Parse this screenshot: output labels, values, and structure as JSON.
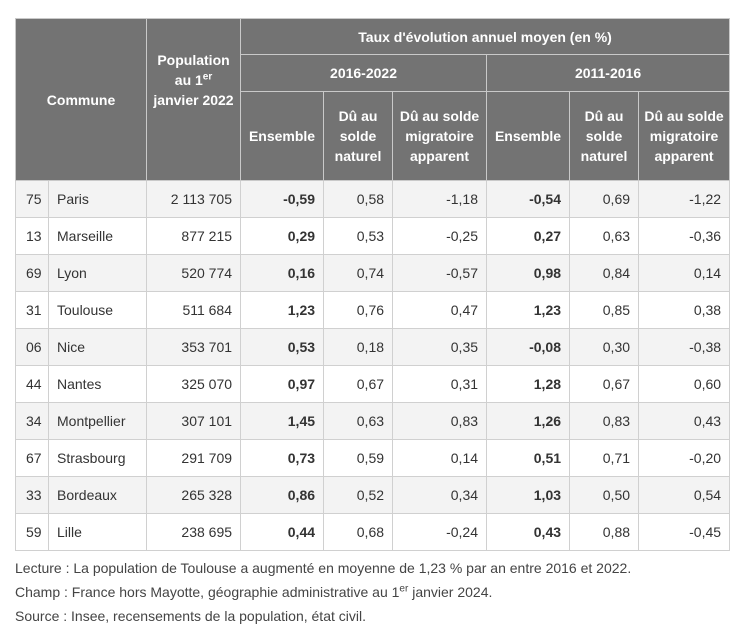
{
  "table": {
    "header": {
      "commune": "Commune",
      "population": "Population au 1",
      "population_sup": "er",
      "population_rest": " janvier 2022",
      "taux": "Taux d'évolution annuel moyen (en %)",
      "period1": "2016-2022",
      "period2": "2011-2016",
      "ensemble": "Ensemble",
      "naturel": "Dû au solde naturel",
      "migratoire": "Dû au solde migratoire apparent"
    },
    "rows": [
      {
        "code": "75",
        "name": "Paris",
        "pop": "2 113 705",
        "e1": "-0,59",
        "n1": "0,58",
        "m1": "-1,18",
        "e2": "-0,54",
        "n2": "0,69",
        "m2": "-1,22"
      },
      {
        "code": "13",
        "name": "Marseille",
        "pop": "877 215",
        "e1": "0,29",
        "n1": "0,53",
        "m1": "-0,25",
        "e2": "0,27",
        "n2": "0,63",
        "m2": "-0,36"
      },
      {
        "code": "69",
        "name": "Lyon",
        "pop": "520 774",
        "e1": "0,16",
        "n1": "0,74",
        "m1": "-0,57",
        "e2": "0,98",
        "n2": "0,84",
        "m2": "0,14"
      },
      {
        "code": "31",
        "name": "Toulouse",
        "pop": "511 684",
        "e1": "1,23",
        "n1": "0,76",
        "m1": "0,47",
        "e2": "1,23",
        "n2": "0,85",
        "m2": "0,38"
      },
      {
        "code": "06",
        "name": "Nice",
        "pop": "353 701",
        "e1": "0,53",
        "n1": "0,18",
        "m1": "0,35",
        "e2": "-0,08",
        "n2": "0,30",
        "m2": "-0,38"
      },
      {
        "code": "44",
        "name": "Nantes",
        "pop": "325 070",
        "e1": "0,97",
        "n1": "0,67",
        "m1": "0,31",
        "e2": "1,28",
        "n2": "0,67",
        "m2": "0,60"
      },
      {
        "code": "34",
        "name": "Montpellier",
        "pop": "307 101",
        "e1": "1,45",
        "n1": "0,63",
        "m1": "0,83",
        "e2": "1,26",
        "n2": "0,83",
        "m2": "0,43"
      },
      {
        "code": "67",
        "name": "Strasbourg",
        "pop": "291 709",
        "e1": "0,73",
        "n1": "0,59",
        "m1": "0,14",
        "e2": "0,51",
        "n2": "0,71",
        "m2": "-0,20"
      },
      {
        "code": "33",
        "name": "Bordeaux",
        "pop": "265 328",
        "e1": "0,86",
        "n1": "0,52",
        "m1": "0,34",
        "e2": "1,03",
        "n2": "0,50",
        "m2": "0,54"
      },
      {
        "code": "59",
        "name": "Lille",
        "pop": "238 695",
        "e1": "0,44",
        "n1": "0,68",
        "m1": "-0,24",
        "e2": "0,43",
        "n2": "0,88",
        "m2": "-0,45"
      }
    ]
  },
  "notes": {
    "lecture": "Lecture : La population de Toulouse a augmenté en moyenne de 1,23 % par an entre 2016 et 2022.",
    "champ_a": "Champ : France hors Mayotte, géographie administrative au 1",
    "champ_sup": "er",
    "champ_b": " janvier 2024.",
    "source": "Source : Insee, recensements de la population, état civil."
  }
}
